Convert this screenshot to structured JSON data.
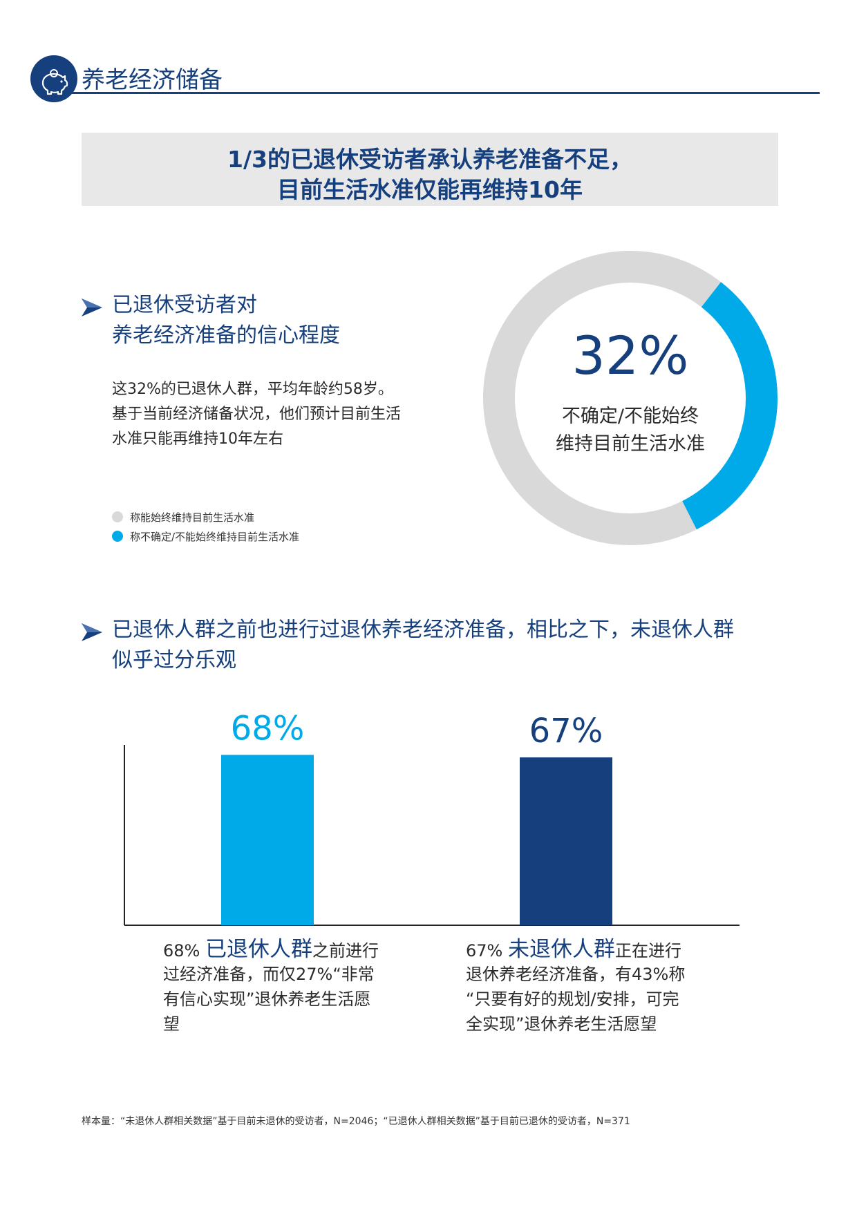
{
  "header": {
    "title": "养老经济储备",
    "icon": "piggy-bank-icon",
    "color": "#153f7d"
  },
  "banner": {
    "line1": "1/3的已退休受访者承认养老准备不足，",
    "line2": "目前生活水准仅能再维持10年"
  },
  "section1": {
    "heading_line1": "已退休受访者对",
    "heading_line2": "养老经济准备的信心程度",
    "body_lines": [
      "这32%的已退休人群，平均年龄约58岁。",
      "基于当前经济储备状况，他们预计目前生活",
      "水准只能再维持10年左右"
    ],
    "legend": [
      "称能始终维持目前生活水准",
      "称不确定/不能始终维持目前生活水准"
    ],
    "donut_pct": "32%",
    "donut_label_line1": "不确定/不能始终",
    "donut_label_line2": "维持目前生活水准"
  },
  "section2": {
    "heading_line1": "已退休人群之前也进行过退休养老经济准备，相比之下，未退休人群",
    "heading_line2": "似乎过分乐观",
    "caption1": {
      "prefix": "68% ",
      "group": "已退休人群",
      "rest1": "之前进行",
      "line2": "过经济准备，而仅27%“非常",
      "line3": "有信心实现”退休养老生活愿",
      "line4": "望"
    },
    "caption2": {
      "prefix": "67% ",
      "group": "未退休人群",
      "rest1": "正在进行",
      "line2": "退休养老经济准备，有43%称",
      "line3": "“只要有好的规划/安排，可完",
      "line4": "全实现”退休养老生活愿望"
    }
  },
  "footnote": "样本量：“未退休人群相关数据”基于目前未退休的受访者，N=2046；“已退休人群相关数据”基于目前已退休的受访者，N=371",
  "colors": {
    "navy": "#153f7d",
    "light_blue": "#00a9e8",
    "gray": "#d9d9d9"
  },
  "chart_data": [
    {
      "type": "pie",
      "variant": "donut",
      "categories": [
        "称能始终维持目前生活水准",
        "称不确定/不能始终维持目前生活水准"
      ],
      "values": [
        68,
        32
      ],
      "colors": [
        "#d9d9d9",
        "#00a9e8"
      ],
      "center_label": "32%"
    },
    {
      "type": "bar",
      "categories": [
        "已退休人群",
        "未退休人群"
      ],
      "values": [
        68,
        67
      ],
      "data_labels": [
        "68%",
        "67%"
      ],
      "colors": [
        "#00a9e8",
        "#153f7d"
      ],
      "ylim": [
        0,
        72
      ],
      "grid": false
    }
  ]
}
